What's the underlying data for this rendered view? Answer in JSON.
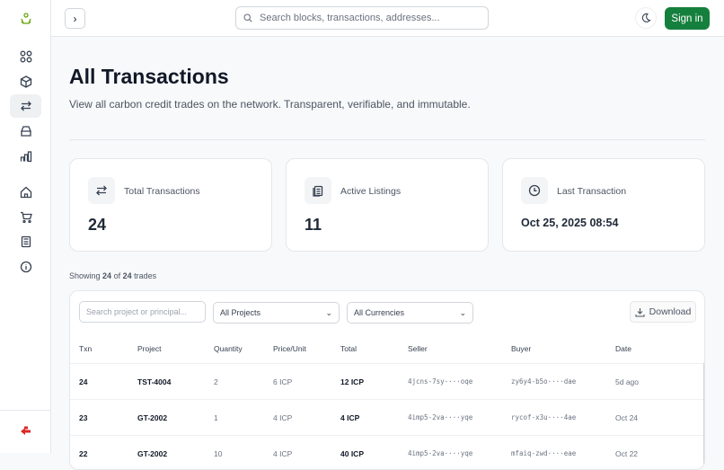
{
  "header": {
    "search_placeholder": "Search blocks, transactions, addresses...",
    "sign_in": "Sign in"
  },
  "page": {
    "title": "All Transactions",
    "subtitle": "View all carbon credit trades on the network. Transparent, verifiable, and immutable."
  },
  "stats": [
    {
      "label": "Total Transactions",
      "value": "24",
      "icon": "arrows-exchange-icon"
    },
    {
      "label": "Active Listings",
      "value": "11",
      "icon": "clipboard-list-icon"
    },
    {
      "label": "Last Transaction",
      "value": "Oct 25, 2025 08:54",
      "icon": "clock-icon"
    }
  ],
  "showing": {
    "prefix": "Showing",
    "shown": "24",
    "of": "of",
    "total": "24",
    "suffix": "trades"
  },
  "filters": {
    "search_placeholder": "Search project or principal...",
    "project": "All Projects",
    "currency": "All Currencies",
    "download": "Download"
  },
  "table": {
    "headers": [
      "Txn",
      "Project",
      "Quantity",
      "Price/Unit",
      "Total",
      "Seller",
      "Buyer",
      "Date"
    ],
    "rows": [
      [
        "24",
        "TST-4004",
        "2",
        "6 ICP",
        "12 ICP",
        "4jcns-7sy····oqe",
        "zy6y4-b5o····dae",
        "5d ago"
      ],
      [
        "23",
        "GT-2002",
        "1",
        "4 ICP",
        "4 ICP",
        "4imp5-2va····yqe",
        "rycof-x3u····4ae",
        "Oct 24"
      ],
      [
        "22",
        "GT-2002",
        "10",
        "4 ICP",
        "40 ICP",
        "4imp5-2va····yqe",
        "mfaiq-zwd····eae",
        "Oct 22"
      ]
    ]
  },
  "colors": {
    "brand": "#15803d",
    "logout": "#dc2626"
  }
}
